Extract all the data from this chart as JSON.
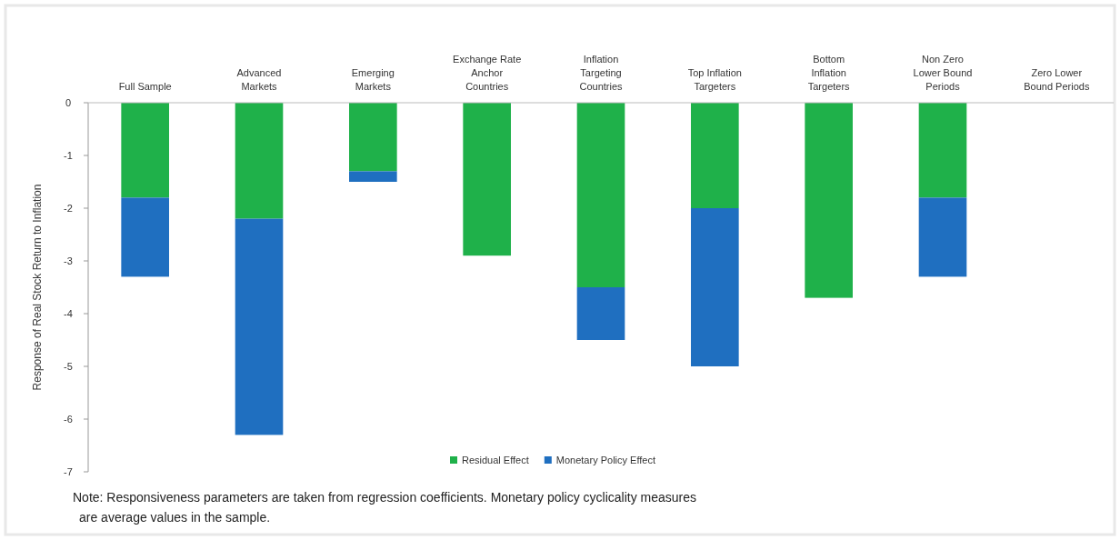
{
  "chart_data": {
    "type": "bar",
    "stacked": true,
    "ylabel": "Response of Real Stock Return to Inflation",
    "categories": [
      "Full Sample",
      "Advanced\nMarkets",
      "Emerging\nMarkets",
      "Exchange Rate\nAnchor\nCountries",
      "Inflation\nTargeting\nCountries",
      "Top Inflation\nTargeters",
      "Bottom\nInflation\nTargeters",
      "Non Zero\nLower Bound\nPeriods",
      "Zero Lower\nBound Periods"
    ],
    "series": [
      {
        "name": "Residual Effect",
        "color": "#1fb14a",
        "values": [
          -1.8,
          -2.2,
          -1.3,
          -2.9,
          -3.5,
          -2.0,
          -3.7,
          -1.8,
          null
        ]
      },
      {
        "name": "Monetary Policy Effect",
        "color": "#1f6fc0",
        "values": [
          -1.5,
          -4.1,
          -0.2,
          null,
          -1.0,
          -3.0,
          null,
          -1.5,
          null
        ]
      }
    ],
    "ylim": [
      -7,
      0
    ],
    "yticks": [
      0,
      -1,
      -2,
      -3,
      -4,
      -5,
      -6,
      -7
    ],
    "legend": "bottom",
    "grid": false,
    "annotations": [
      "Note:  Responsiveness parameters are taken from regression coefficients. Monetary policy cyclicality measures\nare average values in the sample."
    ]
  }
}
